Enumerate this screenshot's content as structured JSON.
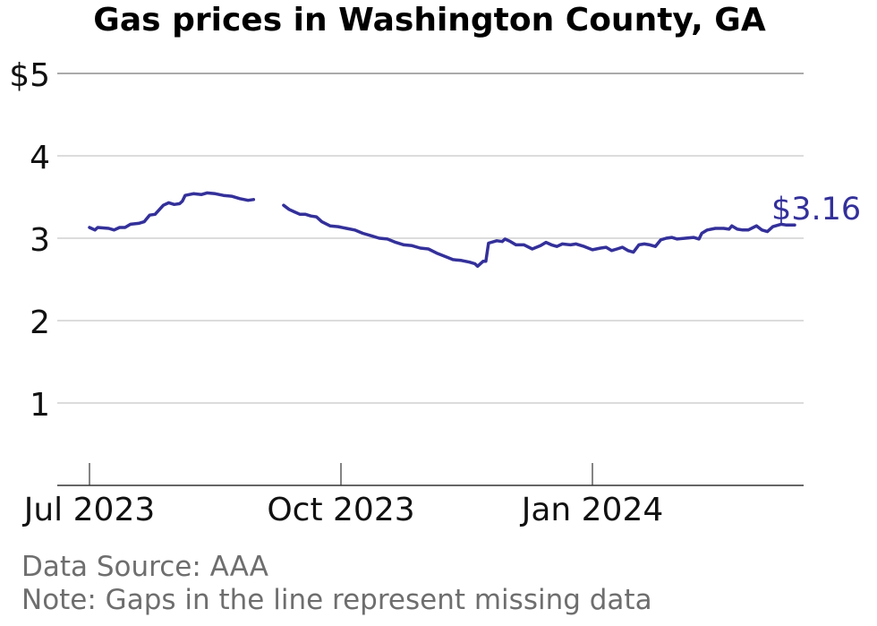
{
  "title": "Gas prices in Washington County, GA",
  "footer": {
    "source": "Data Source: AAA",
    "note": "Note: Gaps in the line represent missing data"
  },
  "colors": {
    "line": "#33309a",
    "grid": "#c8c8c8",
    "axis": "#333333",
    "footer": "#6e6e6e"
  },
  "chart_data": {
    "type": "line",
    "title": "Gas prices in Washington County, GA",
    "xlabel": "",
    "ylabel": "",
    "ylim": [
      0,
      5
    ],
    "xlim": [
      "2023-06-27",
      "2024-03-29"
    ],
    "grid": true,
    "y_ticks": [
      {
        "value": 1,
        "label": "1"
      },
      {
        "value": 2,
        "label": "2"
      },
      {
        "value": 3,
        "label": "3"
      },
      {
        "value": 4,
        "label": "4"
      },
      {
        "value": 5,
        "label": "$5"
      }
    ],
    "x_ticks": [
      {
        "date": "2023-07-01",
        "label": "Jul 2023"
      },
      {
        "date": "2023-10-01",
        "label": "Oct 2023"
      },
      {
        "date": "2024-01-01",
        "label": "Jan 2024"
      }
    ],
    "end_label": "$3.16",
    "series": [
      {
        "segments": [
          [
            [
              "2023-07-01",
              3.13
            ],
            [
              "2023-07-03",
              3.1
            ],
            [
              "2023-07-04",
              3.13
            ],
            [
              "2023-07-08",
              3.12
            ],
            [
              "2023-07-10",
              3.1
            ],
            [
              "2023-07-12",
              3.13
            ],
            [
              "2023-07-14",
              3.13
            ],
            [
              "2023-07-16",
              3.17
            ],
            [
              "2023-07-19",
              3.18
            ],
            [
              "2023-07-21",
              3.2
            ],
            [
              "2023-07-23",
              3.28
            ],
            [
              "2023-07-25",
              3.29
            ],
            [
              "2023-07-28",
              3.4
            ],
            [
              "2023-07-30",
              3.43
            ],
            [
              "2023-08-01",
              3.41
            ],
            [
              "2023-08-03",
              3.42
            ],
            [
              "2023-08-04",
              3.45
            ],
            [
              "2023-08-05",
              3.52
            ],
            [
              "2023-08-08",
              3.54
            ],
            [
              "2023-08-11",
              3.53
            ],
            [
              "2023-08-13",
              3.55
            ],
            [
              "2023-08-16",
              3.54
            ],
            [
              "2023-08-19",
              3.52
            ],
            [
              "2023-08-22",
              3.51
            ],
            [
              "2023-08-25",
              3.48
            ],
            [
              "2023-08-28",
              3.46
            ],
            [
              "2023-08-30",
              3.47
            ]
          ],
          [
            [
              "2023-09-10",
              3.4
            ],
            [
              "2023-09-12",
              3.35
            ],
            [
              "2023-09-14",
              3.32
            ],
            [
              "2023-09-16",
              3.29
            ],
            [
              "2023-09-18",
              3.29
            ],
            [
              "2023-09-20",
              3.27
            ],
            [
              "2023-09-22",
              3.26
            ],
            [
              "2023-09-24",
              3.2
            ],
            [
              "2023-09-27",
              3.15
            ],
            [
              "2023-09-30",
              3.14
            ],
            [
              "2023-10-03",
              3.12
            ],
            [
              "2023-10-06",
              3.1
            ],
            [
              "2023-10-09",
              3.06
            ],
            [
              "2023-10-12",
              3.03
            ],
            [
              "2023-10-15",
              3.0
            ],
            [
              "2023-10-18",
              2.99
            ],
            [
              "2023-10-21",
              2.95
            ],
            [
              "2023-10-24",
              2.92
            ],
            [
              "2023-10-27",
              2.91
            ],
            [
              "2023-10-30",
              2.88
            ],
            [
              "2023-11-02",
              2.87
            ],
            [
              "2023-11-05",
              2.82
            ],
            [
              "2023-11-08",
              2.78
            ],
            [
              "2023-11-11",
              2.74
            ],
            [
              "2023-11-14",
              2.73
            ],
            [
              "2023-11-17",
              2.71
            ],
            [
              "2023-11-19",
              2.69
            ],
            [
              "2023-11-20",
              2.66
            ],
            [
              "2023-11-22",
              2.72
            ],
            [
              "2023-11-23",
              2.72
            ],
            [
              "2023-11-24",
              2.94
            ],
            [
              "2023-11-27",
              2.97
            ],
            [
              "2023-11-29",
              2.96
            ],
            [
              "2023-11-30",
              2.99
            ],
            [
              "2023-12-02",
              2.96
            ],
            [
              "2023-12-04",
              2.92
            ],
            [
              "2023-12-07",
              2.92
            ],
            [
              "2023-12-10",
              2.87
            ],
            [
              "2023-12-13",
              2.91
            ],
            [
              "2023-12-15",
              2.95
            ],
            [
              "2023-12-17",
              2.92
            ],
            [
              "2023-12-19",
              2.9
            ],
            [
              "2023-12-21",
              2.93
            ],
            [
              "2023-12-24",
              2.92
            ],
            [
              "2023-12-26",
              2.93
            ],
            [
              "2023-12-29",
              2.9
            ],
            [
              "2024-01-01",
              2.86
            ],
            [
              "2024-01-04",
              2.88
            ],
            [
              "2024-01-06",
              2.89
            ],
            [
              "2024-01-08",
              2.85
            ],
            [
              "2024-01-10",
              2.87
            ],
            [
              "2024-01-12",
              2.89
            ],
            [
              "2024-01-14",
              2.85
            ],
            [
              "2024-01-16",
              2.83
            ],
            [
              "2024-01-18",
              2.92
            ],
            [
              "2024-01-20",
              2.93
            ],
            [
              "2024-01-22",
              2.92
            ],
            [
              "2024-01-24",
              2.9
            ],
            [
              "2024-01-26",
              2.98
            ],
            [
              "2024-01-28",
              3.0
            ],
            [
              "2024-01-30",
              3.01
            ],
            [
              "2024-02-01",
              2.99
            ],
            [
              "2024-02-04",
              3.0
            ],
            [
              "2024-02-07",
              3.01
            ],
            [
              "2024-02-09",
              2.99
            ],
            [
              "2024-02-10",
              3.06
            ],
            [
              "2024-02-12",
              3.1
            ],
            [
              "2024-02-15",
              3.12
            ],
            [
              "2024-02-18",
              3.12
            ],
            [
              "2024-02-20",
              3.11
            ],
            [
              "2024-02-21",
              3.15
            ],
            [
              "2024-02-23",
              3.11
            ],
            [
              "2024-02-25",
              3.1
            ],
            [
              "2024-02-27",
              3.1
            ],
            [
              "2024-03-01",
              3.15
            ],
            [
              "2024-03-03",
              3.1
            ],
            [
              "2024-03-05",
              3.08
            ],
            [
              "2024-03-07",
              3.14
            ],
            [
              "2024-03-10",
              3.17
            ],
            [
              "2024-03-12",
              3.16
            ],
            [
              "2024-03-15",
              3.16
            ]
          ]
        ]
      }
    ]
  }
}
